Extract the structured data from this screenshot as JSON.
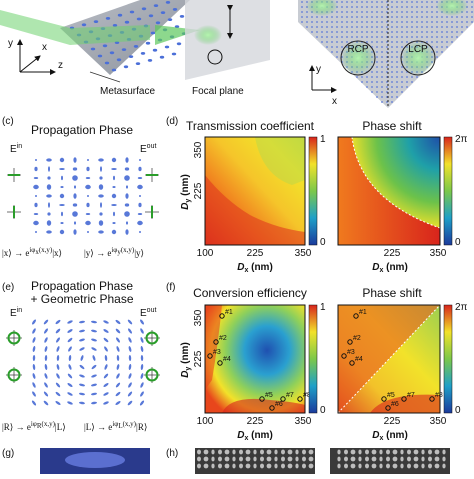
{
  "panel_a": {
    "axes": [
      "y",
      "x",
      "z"
    ],
    "labels": [
      "Metasurface",
      "Focal plane"
    ]
  },
  "panel_b": {
    "circles": [
      "RCP",
      "LCP"
    ],
    "axes": [
      "y",
      "x"
    ]
  },
  "panel_c": {
    "tag": "(c)",
    "title": "Propagation Phase",
    "e_in": [
      "E",
      "in"
    ],
    "e_out": [
      "E",
      "out"
    ],
    "formula": [
      [
        "|x⟩ → e",
        "iφ",
        "x",
        "(x,y)",
        "|x⟩"
      ],
      [
        "|y⟩ → e",
        "iφ",
        "y",
        "(x,y)",
        "|y⟩"
      ]
    ]
  },
  "panel_d": {
    "tag": "(d)",
    "titles": [
      "Transmission coefficient",
      "Phase shift"
    ],
    "y_label": [
      "D",
      "y",
      " (nm)"
    ],
    "x_label": [
      "D",
      "x",
      " (nm)"
    ],
    "yticks": [
      350,
      225
    ],
    "xticks": [
      100,
      225,
      350
    ],
    "xticks_right": [
      225,
      350
    ],
    "colorbar_left": [
      "1",
      "0"
    ],
    "colorbar_right": [
      "2π",
      "0"
    ]
  },
  "panel_e": {
    "tag": "(e)",
    "title": [
      "Propagation Phase",
      "+ Geometric Phase"
    ],
    "e_in": [
      "E",
      "in"
    ],
    "e_out": [
      "E",
      "out"
    ],
    "formula": [
      [
        "|R⟩ → e",
        "iφ",
        "R",
        "(x,y)",
        "|L⟩"
      ],
      [
        "|L⟩ → e",
        "iφ",
        "L",
        "(x,y)",
        "|R⟩"
      ]
    ]
  },
  "panel_f": {
    "tag": "(f)",
    "titles": [
      "Conversion efficiency",
      "Phase shift"
    ],
    "y_label": [
      "D",
      "y",
      " (nm)"
    ],
    "x_label": [
      "D",
      "x",
      " (nm)"
    ],
    "yticks": [
      350,
      225
    ],
    "xticks": [
      100,
      225,
      350
    ],
    "xticks_right": [
      225,
      350
    ],
    "colorbar_left": [
      "1",
      "0"
    ],
    "colorbar_right": [
      "2π",
      "0"
    ],
    "points": [
      "#1",
      "#2",
      "#3",
      "#4",
      "#5",
      "#6",
      "#7",
      "#8"
    ]
  },
  "panel_g": {
    "tag": "(g)"
  },
  "panel_h": {
    "tag": "(h)"
  }
}
